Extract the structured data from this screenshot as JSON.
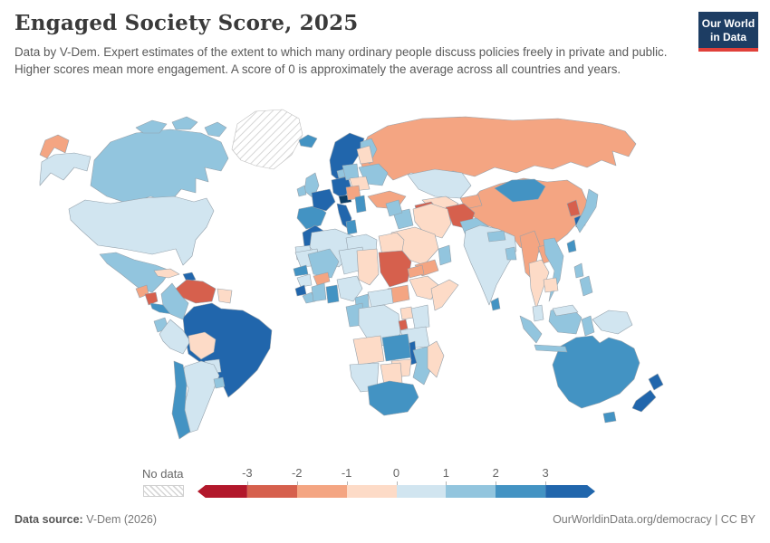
{
  "header": {
    "title": "Engaged Society Score, 2025",
    "subtitle": "Data by V-Dem. Expert estimates of the extent to which many ordinary people discuss policies freely in private and public. Higher scores mean more engagement. A score of 0 is approximately the average across all countries and years.",
    "logo": {
      "line1": "Our World",
      "line2": "in Data",
      "bg": "#1d3d63",
      "accent": "#e0403a"
    }
  },
  "legend": {
    "no_data_label": "No data",
    "ticks": [
      "-3",
      "-2",
      "-1",
      "0",
      "1",
      "2",
      "3"
    ],
    "segments": [
      "#b2182b",
      "#d6604d",
      "#f4a582",
      "#fddbc7",
      "#d1e5f0",
      "#92c5de",
      "#4393c3",
      "#2166ac"
    ]
  },
  "footer": {
    "source_label": "Data source:",
    "source_value": "V-Dem (2026)",
    "right_text": "OurWorldinData.org/democracy | CC BY"
  },
  "map": {
    "border_color": "#94a1ab",
    "palette": {
      "r4": "#b2182b",
      "r3": "#d6604d",
      "r2": "#f4a582",
      "r1": "#fddbc7",
      "b1": "#d1e5f0",
      "b2": "#92c5de",
      "b3": "#4393c3",
      "b4": "#2166ac",
      "b5": "#0b3d66",
      "nodata": "hatch"
    },
    "regions": {
      "russia-east": "r2",
      "alaska": "b1",
      "canada": "b2",
      "greenland": "nodata",
      "iceland": "b3",
      "usa": "b1",
      "mexico": "b2",
      "guatemala": "r2",
      "nicaragua": "r3",
      "costa-rica-panama": "b3",
      "cuba": "r1",
      "hispaniola": "b4",
      "venezuela": "r3",
      "colombia": "b2",
      "guianas": "r1",
      "brazil": "b4",
      "ecuador": "b2",
      "peru": "b1",
      "bolivia": "r1",
      "paraguay": "b1",
      "chile": "b3",
      "argentina": "b1",
      "uruguay": "b2",
      "norway-sweden": "b4",
      "finland": "b2",
      "denmark": "b2",
      "uk": "b2",
      "ireland": "b2",
      "iberia": "b3",
      "france": "b4",
      "germany": "b4",
      "switzerland": "b5",
      "italy": "b4",
      "poland": "b2",
      "belarus-baltics": "r1",
      "ukraine": "b2",
      "romania-hungary": "r1",
      "balkans": "r2",
      "greece": "b3",
      "turkey": "r2",
      "russia": "r2",
      "kazakhstan": "b1",
      "uzbekistan": "r1",
      "turkmenistan": "r3",
      "kyrgyzstan-tajikistan": "r2",
      "mongolia": "b3",
      "china": "r2",
      "north-korea": "r3",
      "south-korea": "b4",
      "japan": "b2",
      "taiwan": "b3",
      "afghanistan": "r3",
      "pakistan": "b2",
      "india": "b1",
      "nepal": "b2",
      "bangladesh": "b2",
      "sri-lanka": "b3",
      "iran": "r1",
      "iraq": "b2",
      "syria": "b2",
      "saudi-arabia": "r1",
      "yemen": "r2",
      "oman": "b2",
      "morocco": "b4",
      "western-sahara": "b1",
      "algeria": "b1",
      "tunisia": "b3",
      "libya": "b1",
      "egypt": "r1",
      "mauritania": "b1",
      "mali": "b2",
      "niger": "b1",
      "chad": "r1",
      "sudan": "r3",
      "eritrea": "r2",
      "ethiopia": "r1",
      "somalia": "r1",
      "south-sudan": "r2",
      "senegal": "b3",
      "guinea": "b1",
      "sierra-leone": "b4",
      "liberia": "b2",
      "ivory-coast": "b2",
      "burkina-faso": "r2",
      "ghana": "b3",
      "nigeria": "b1",
      "cameroon": "b2",
      "central-african-republic": "b1",
      "gabon-congo": "b2",
      "drc": "b1",
      "uganda": "r1",
      "kenya": "b1",
      "rwanda-burundi": "r3",
      "tanzania": "b1",
      "angola": "r1",
      "zambia": "b3",
      "malawi": "b4",
      "mozambique": "b2",
      "zimbabwe": "r1",
      "botswana": "r1",
      "namibia": "b1",
      "south-africa": "b3",
      "madagascar": "r1",
      "myanmar": "r2",
      "thailand": "r1",
      "laos": "r2",
      "vietnam": "b2",
      "cambodia": "r1",
      "malaysia": "b1",
      "indonesia": "b2",
      "papua-new-guinea": "b1",
      "philippines": "b2",
      "australia": "b3",
      "new-zealand": "b4"
    }
  }
}
